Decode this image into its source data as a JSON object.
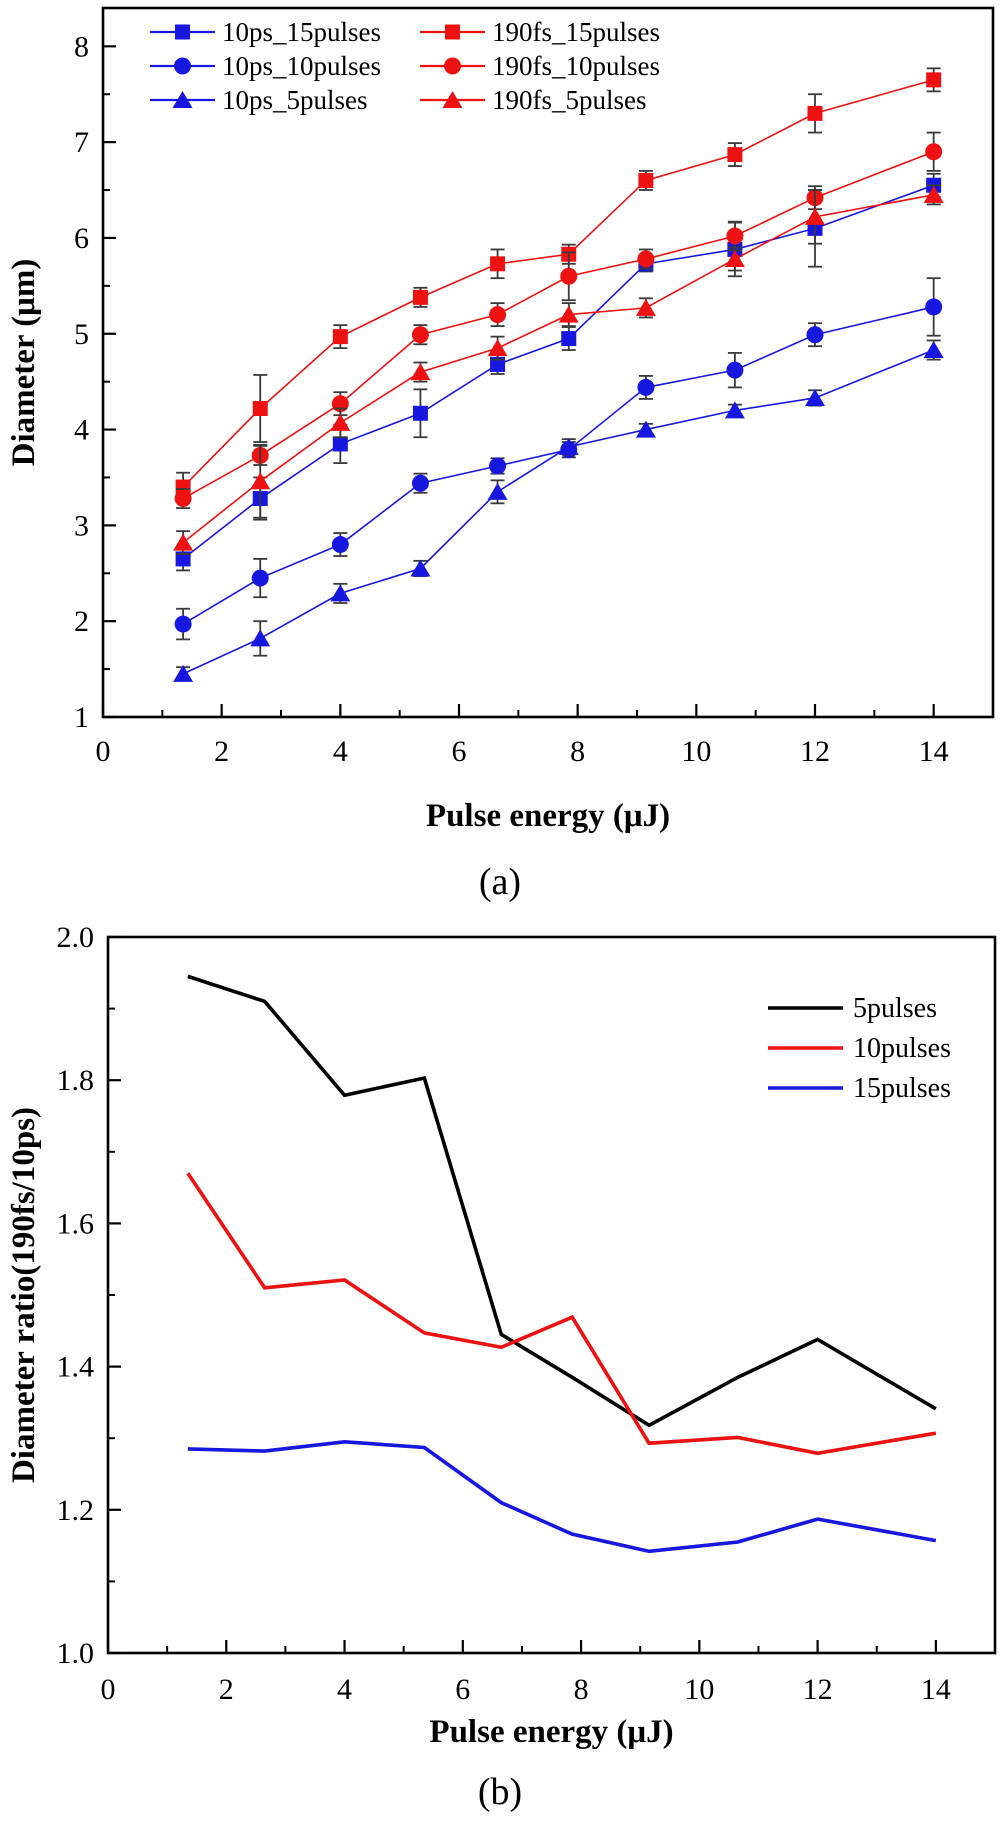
{
  "page": {
    "caption_a": "(a)",
    "caption_b": "(b)"
  },
  "colors": {
    "blue": "#1717e0",
    "red": "#ee1111",
    "black": "#000000",
    "errorbar": "#3a3a3a"
  },
  "chart_data": [
    {
      "id": "a",
      "type": "line",
      "xlabel": "Pulse energy (μJ)",
      "ylabel": "Diameter (μm)",
      "xlim": [
        0,
        15
      ],
      "ylim": [
        1,
        8.4
      ],
      "x_major_ticks": [
        0,
        2,
        4,
        6,
        8,
        10,
        12,
        14
      ],
      "x_minor_ticks": [
        1,
        3,
        5,
        7,
        9,
        11,
        13,
        15
      ],
      "y_major_ticks": [
        1,
        2,
        3,
        4,
        5,
        6,
        7,
        8
      ],
      "y_minor_ticks": [
        1.5,
        2.5,
        3.5,
        4.5,
        5.5,
        6.5,
        7.5
      ],
      "y_tick_decimals": 0,
      "grid": false,
      "legend_position": "top-left-two-columns",
      "x": [
        1.35,
        2.65,
        4,
        5.35,
        6.65,
        7.85,
        9.15,
        10.65,
        12,
        14
      ],
      "series": [
        {
          "name": "10ps_15pulses",
          "color": "blue",
          "marker": "square",
          "values": [
            2.65,
            3.28,
            3.85,
            4.17,
            4.68,
            4.95,
            5.73,
            5.88,
            6.1,
            6.55
          ],
          "err": [
            0.12,
            0.22,
            0.2,
            0.25,
            0.1,
            0.12,
            0.08,
            0.28,
            0.4,
            0.12
          ]
        },
        {
          "name": "10ps_10pulses",
          "color": "blue",
          "marker": "circle",
          "values": [
            1.97,
            2.45,
            2.8,
            3.44,
            3.62,
            3.79,
            4.44,
            4.62,
            4.99,
            5.28
          ],
          "err": [
            0.16,
            0.2,
            0.12,
            0.1,
            0.08,
            0.08,
            0.12,
            0.18,
            0.12,
            0.3
          ]
        },
        {
          "name": "10ps_5pulses",
          "color": "blue",
          "marker": "triangle",
          "values": [
            1.45,
            1.82,
            2.29,
            2.55,
            3.35,
            3.82,
            4.0,
            4.2,
            4.33,
            4.83
          ],
          "err": [
            0.07,
            0.18,
            0.1,
            0.08,
            0.12,
            0.08,
            0.06,
            0.06,
            0.08,
            0.1
          ]
        },
        {
          "name": "190fs_15pulses",
          "color": "red",
          "marker": "square",
          "values": [
            3.4,
            4.22,
            4.97,
            5.38,
            5.73,
            5.83,
            6.6,
            6.87,
            7.3,
            7.65
          ],
          "err": [
            0.15,
            0.35,
            0.12,
            0.1,
            0.15,
            0.1,
            0.1,
            0.12,
            0.2,
            0.12
          ]
        },
        {
          "name": "190fs_10pulses",
          "color": "red",
          "marker": "circle",
          "values": [
            3.28,
            3.73,
            4.27,
            4.99,
            5.2,
            5.6,
            5.78,
            6.02,
            6.42,
            6.9
          ],
          "err": [
            0.1,
            0.1,
            0.12,
            0.1,
            0.12,
            0.25,
            0.1,
            0.15,
            0.12,
            0.2
          ]
        },
        {
          "name": "190fs_5pulses",
          "color": "red",
          "marker": "triangle",
          "values": [
            2.82,
            3.46,
            4.07,
            4.6,
            4.85,
            5.2,
            5.27,
            5.78,
            6.22,
            6.45
          ],
          "err": [
            0.12,
            0.38,
            0.15,
            0.1,
            0.12,
            0.12,
            0.1,
            0.12,
            0.28,
            0.1
          ]
        }
      ]
    },
    {
      "id": "b",
      "type": "line",
      "xlabel": "Pulse energy (μJ)",
      "ylabel": "Diameter ratio(190fs/10ps)",
      "xlim": [
        0,
        15
      ],
      "ylim": [
        1.0,
        2.0
      ],
      "x_major_ticks": [
        0,
        2,
        4,
        6,
        8,
        10,
        12,
        14
      ],
      "x_minor_ticks": [
        1,
        3,
        5,
        7,
        9,
        11,
        13,
        15
      ],
      "y_major_ticks": [
        1.0,
        1.2,
        1.4,
        1.6,
        1.8,
        2.0
      ],
      "y_minor_ticks": [
        1.1,
        1.3,
        1.5,
        1.7,
        1.9
      ],
      "y_tick_decimals": 1,
      "grid": false,
      "legend_position": "top-right",
      "x": [
        1.35,
        2.65,
        4,
        5.35,
        6.65,
        7.85,
        9.15,
        10.65,
        12,
        14
      ],
      "series": [
        {
          "name": "5pulses",
          "color": "black",
          "marker": "none",
          "values": [
            1.945,
            1.91,
            1.779,
            1.803,
            1.445,
            1.385,
            1.318,
            1.385,
            1.438,
            1.341
          ]
        },
        {
          "name": "10pulses",
          "color": "red",
          "marker": "none",
          "values": [
            1.67,
            1.51,
            1.521,
            1.447,
            1.427,
            1.469,
            1.293,
            1.301,
            1.279,
            1.307
          ]
        },
        {
          "name": "15pulses",
          "color": "blue",
          "marker": "none",
          "values": [
            1.285,
            1.282,
            1.295,
            1.287,
            1.21,
            1.166,
            1.142,
            1.155,
            1.187,
            1.157
          ]
        }
      ]
    }
  ]
}
